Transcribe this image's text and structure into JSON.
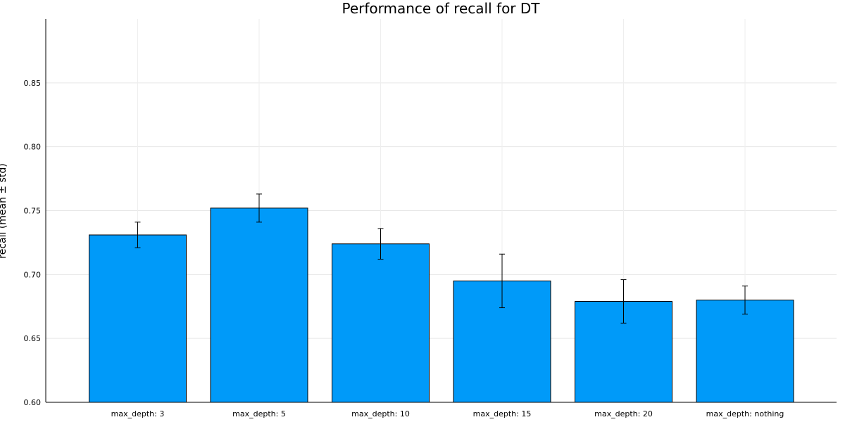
{
  "chart_data": {
    "type": "bar",
    "title": "Performance of recall for DT",
    "xlabel": "",
    "ylabel": "recall (mean ± std)",
    "categories": [
      "max_depth: 3",
      "max_depth: 5",
      "max_depth: 10",
      "max_depth: 15",
      "max_depth: 20",
      "max_depth: nothing"
    ],
    "values": [
      0.731,
      0.752,
      0.724,
      0.695,
      0.679,
      0.68
    ],
    "errors": [
      0.01,
      0.011,
      0.012,
      0.021,
      0.017,
      0.011
    ],
    "ylim": [
      0.6,
      0.9
    ],
    "yticks": [
      0.6,
      0.65,
      0.7,
      0.75,
      0.8,
      0.85
    ],
    "ytick_labels": [
      "0.60",
      "0.65",
      "0.70",
      "0.75",
      "0.80",
      "0.85"
    ],
    "grid": true,
    "bar_color": "#009af9",
    "edge_color": "#000000"
  }
}
